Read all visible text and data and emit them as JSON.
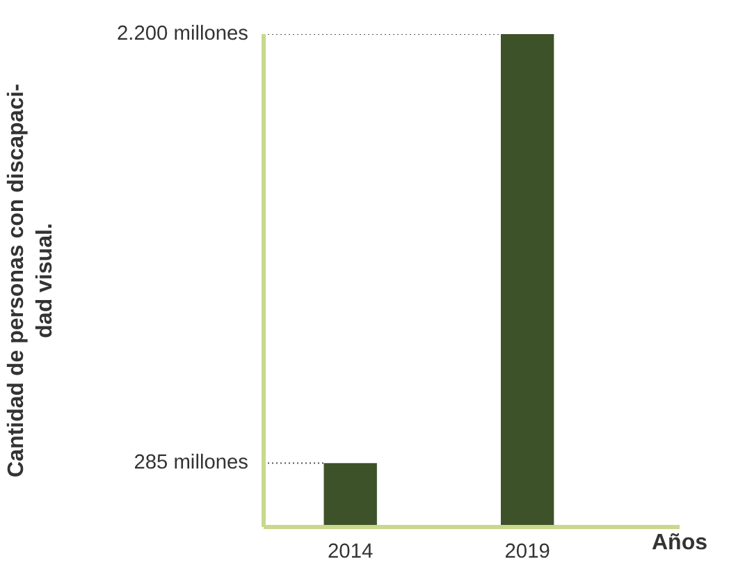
{
  "chart_data": {
    "type": "bar",
    "xlabel": "Años",
    "ylabel": "Cantidad de personas con discapaci-\ndad visual.",
    "categories": [
      "2014",
      "2019"
    ],
    "values": [
      285,
      2200
    ],
    "color": "#3d5228",
    "ylim": [
      0,
      2200
    ],
    "yticks": [
      {
        "value": 285,
        "label": "285 millones"
      },
      {
        "value": 2200,
        "label": "2.200 millones"
      }
    ],
    "ref_lines": [
      {
        "axis": "y",
        "value": 285,
        "color": "#555555",
        "line_style": "dotted"
      },
      {
        "axis": "y",
        "value": 2200,
        "color": "#555555",
        "line_style": "dotted"
      }
    ],
    "grid": false
  }
}
